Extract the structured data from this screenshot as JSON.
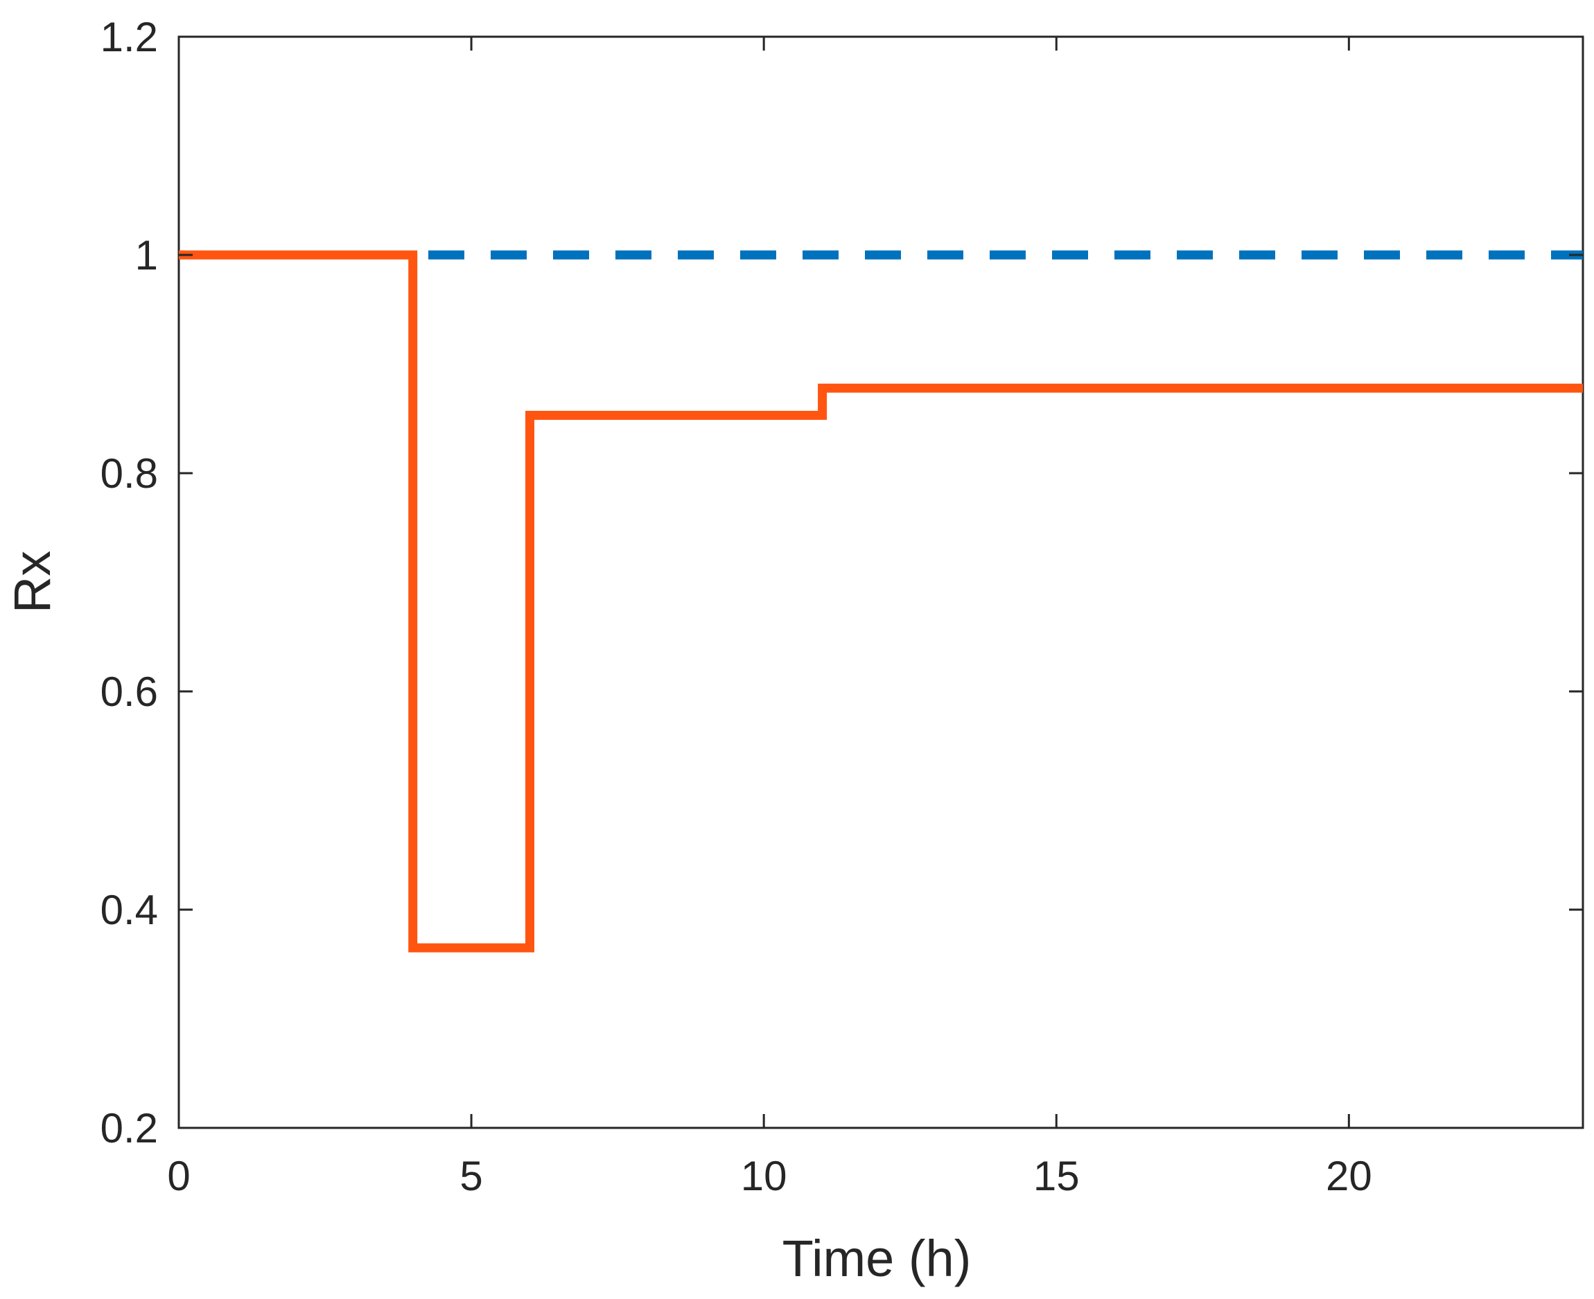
{
  "chart_data": {
    "type": "line",
    "title": "",
    "xlabel": "Time (h)",
    "ylabel": "Rx",
    "xlim": [
      0,
      24
    ],
    "ylim": [
      0.2,
      1.2
    ],
    "xticks": [
      0,
      5,
      10,
      15,
      20
    ],
    "yticks": [
      0.2,
      0.4,
      0.6,
      0.8,
      1.0,
      1.2
    ],
    "xtick_labels": [
      "0",
      "5",
      "10",
      "15",
      "20"
    ],
    "ytick_labels": [
      "0.2",
      "0.4",
      "0.6",
      "0.8",
      "1",
      "1.2"
    ],
    "grid": false,
    "legend": "none",
    "series": [
      {
        "style": "dashed",
        "color": "#0072BD",
        "step": true,
        "x": [
          0,
          24
        ],
        "y": [
          1.0,
          1.0
        ]
      },
      {
        "style": "solid",
        "color": "#FF5511",
        "step": true,
        "x": [
          0,
          4,
          4,
          6,
          6,
          11,
          11,
          24
        ],
        "y": [
          1.0,
          1.0,
          0.365,
          0.365,
          0.853,
          0.853,
          0.878,
          0.878
        ]
      }
    ]
  }
}
